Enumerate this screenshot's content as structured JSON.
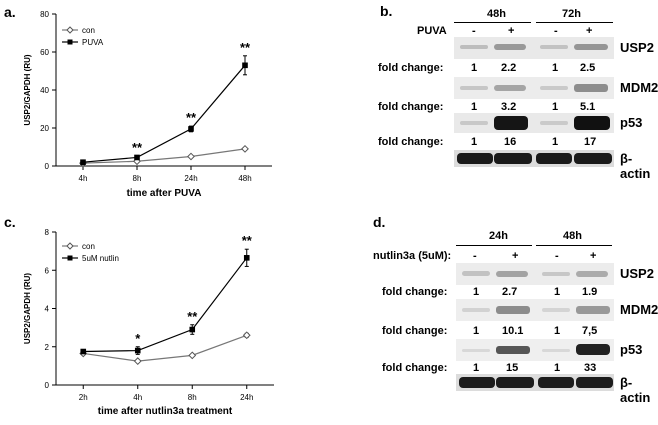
{
  "panels": {
    "a": "a.",
    "b": "b.",
    "c": "c.",
    "d": "d."
  },
  "chart_data": [
    {
      "type": "line",
      "ylabel": "USP2/GAPDH (RU)",
      "xlabel": "time after PUVA",
      "categories": [
        "4h",
        "8h",
        "24h",
        "48h"
      ],
      "ylim": [
        0,
        80
      ],
      "yticks": [
        "0",
        "20",
        "40",
        "60",
        "80"
      ],
      "series": [
        {
          "name": "con",
          "values": [
            1.5,
            2.5,
            5,
            9
          ],
          "errors": [
            0,
            0,
            0,
            0.5
          ]
        },
        {
          "name": "PUVA",
          "values": [
            2,
            4.5,
            19.5,
            53
          ],
          "errors": [
            0,
            0.8,
            1.5,
            5
          ]
        }
      ],
      "annotations": [
        "",
        "**",
        "**",
        "**"
      ],
      "legend": "top-left"
    },
    {
      "type": "line",
      "ylabel": "USP2/GAPDH (RU)",
      "xlabel": "time after nutlin3a treatment",
      "categories": [
        "2h",
        "4h",
        "8h",
        "24h"
      ],
      "ylim": [
        0,
        8
      ],
      "yticks": [
        "0",
        "2",
        "4",
        "6",
        "8"
      ],
      "series": [
        {
          "name": "con",
          "values": [
            1.65,
            1.25,
            1.55,
            2.6
          ],
          "errors": [
            0,
            0,
            0,
            0.1
          ]
        },
        {
          "name": "5uM nutlin",
          "values": [
            1.75,
            1.8,
            2.9,
            6.65
          ],
          "errors": [
            0,
            0.2,
            0.25,
            0.45
          ]
        }
      ],
      "annotations": [
        "",
        "*",
        "**",
        "**"
      ],
      "legend": "top-left"
    }
  ],
  "blot_b": {
    "timepoints": [
      "48h",
      "72h"
    ],
    "treatment_label": "PUVA",
    "signs": [
      "-",
      "+",
      "-",
      "+"
    ],
    "fold_label": "fold change:",
    "proteins": [
      "USP2",
      "MDM2",
      "p53",
      "β-actin"
    ],
    "folds": [
      [
        "1",
        "2.2",
        "1",
        "2.5"
      ],
      [
        "1",
        "3.2",
        "1",
        "5.1"
      ],
      [
        "1",
        "16",
        "1",
        "17"
      ]
    ]
  },
  "blot_d": {
    "timepoints": [
      "24h",
      "48h"
    ],
    "treatment_label": "nutlin3a (5uM):",
    "signs": [
      "-",
      "+",
      "-",
      "+"
    ],
    "fold_label": "fold change:",
    "proteins": [
      "USP2",
      "MDM2",
      "p53",
      "β-actin"
    ],
    "folds": [
      [
        "1",
        "2.7",
        "1",
        "1.9"
      ],
      [
        "1",
        "10.1",
        "1",
        "7,5"
      ],
      [
        "1",
        "15",
        "1",
        "33"
      ]
    ]
  }
}
